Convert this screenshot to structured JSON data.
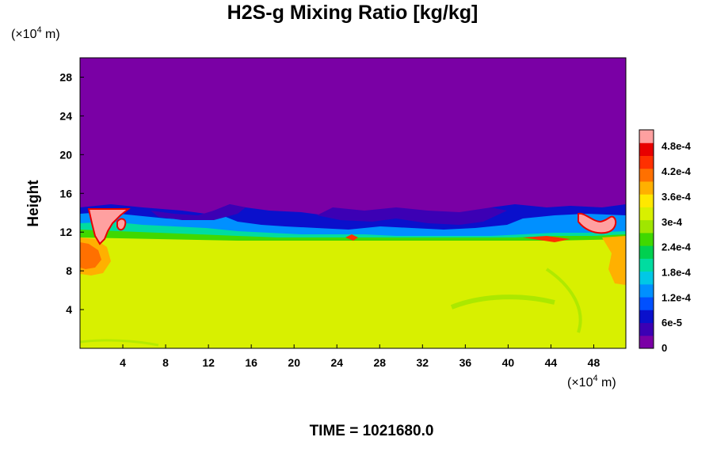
{
  "chart_data": {
    "type": "heatmap",
    "title": "H2S-g Mixing Ratio [kg/kg]",
    "ylabel": "Height",
    "xunit_prefix": "(×10",
    "xunit_exp": "4",
    "xunit_suffix": " m)",
    "yunit_prefix": "(×10",
    "yunit_exp": "4",
    "yunit_suffix": " m)",
    "time_label": "TIME = 1021680.0",
    "xlim": [
      0,
      51
    ],
    "ylim": [
      0,
      30
    ],
    "xticks": [
      {
        "value": 4,
        "label": "4"
      },
      {
        "value": 8,
        "label": "8"
      },
      {
        "value": 12,
        "label": "12"
      },
      {
        "value": 16,
        "label": "16"
      },
      {
        "value": 20,
        "label": "20"
      },
      {
        "value": 24,
        "label": "24"
      },
      {
        "value": 28,
        "label": "28"
      },
      {
        "value": 32,
        "label": "32"
      },
      {
        "value": 36,
        "label": "36"
      },
      {
        "value": 40,
        "label": "40"
      },
      {
        "value": 44,
        "label": "44"
      },
      {
        "value": 48,
        "label": "48"
      }
    ],
    "yticks": [
      {
        "value": 4,
        "label": "4"
      },
      {
        "value": 8,
        "label": "8"
      },
      {
        "value": 12,
        "label": "12"
      },
      {
        "value": 16,
        "label": "16"
      },
      {
        "value": 20,
        "label": "20"
      },
      {
        "value": 24,
        "label": "24"
      },
      {
        "value": 28,
        "label": "28"
      }
    ],
    "colorbar": {
      "min": 0,
      "max": 0.00052,
      "ticks": [
        {
          "value": 0,
          "label": "0"
        },
        {
          "value": 6e-05,
          "label": "6e-5"
        },
        {
          "value": 0.00012,
          "label": "1.2e-4"
        },
        {
          "value": 0.00018,
          "label": "1.8e-4"
        },
        {
          "value": 0.00024,
          "label": "2.4e-4"
        },
        {
          "value": 0.0003,
          "label": "3e-4"
        },
        {
          "value": 0.00036,
          "label": "3.6e-4"
        },
        {
          "value": 0.00042,
          "label": "4.2e-4"
        },
        {
          "value": 0.00048,
          "label": "4.8e-4"
        }
      ],
      "colors": [
        "#7a00a5",
        "#3c00b4",
        "#0a10cc",
        "#0050ff",
        "#0090ff",
        "#00c8e6",
        "#00dca0",
        "#00d050",
        "#40d800",
        "#a0e600",
        "#d8f000",
        "#ffe800",
        "#ffb000",
        "#ff7000",
        "#ff3000",
        "#e80000",
        "#ffa0a0"
      ]
    },
    "regions": [
      {
        "name": "upper-layer",
        "x": [
          0,
          51
        ],
        "y": [
          15,
          30
        ],
        "value": 0
      },
      {
        "name": "lower-layer",
        "x": [
          0,
          51
        ],
        "y": [
          0,
          12
        ],
        "value": 0.00033
      },
      {
        "name": "left-plume",
        "x": [
          1,
          4.5
        ],
        "y": [
          10.8,
          14.2
        ],
        "value": 0.0005
      },
      {
        "name": "right-plume",
        "x": [
          46.5,
          49.5
        ],
        "y": [
          11.8,
          13.4
        ],
        "value": 0.0005
      }
    ]
  }
}
